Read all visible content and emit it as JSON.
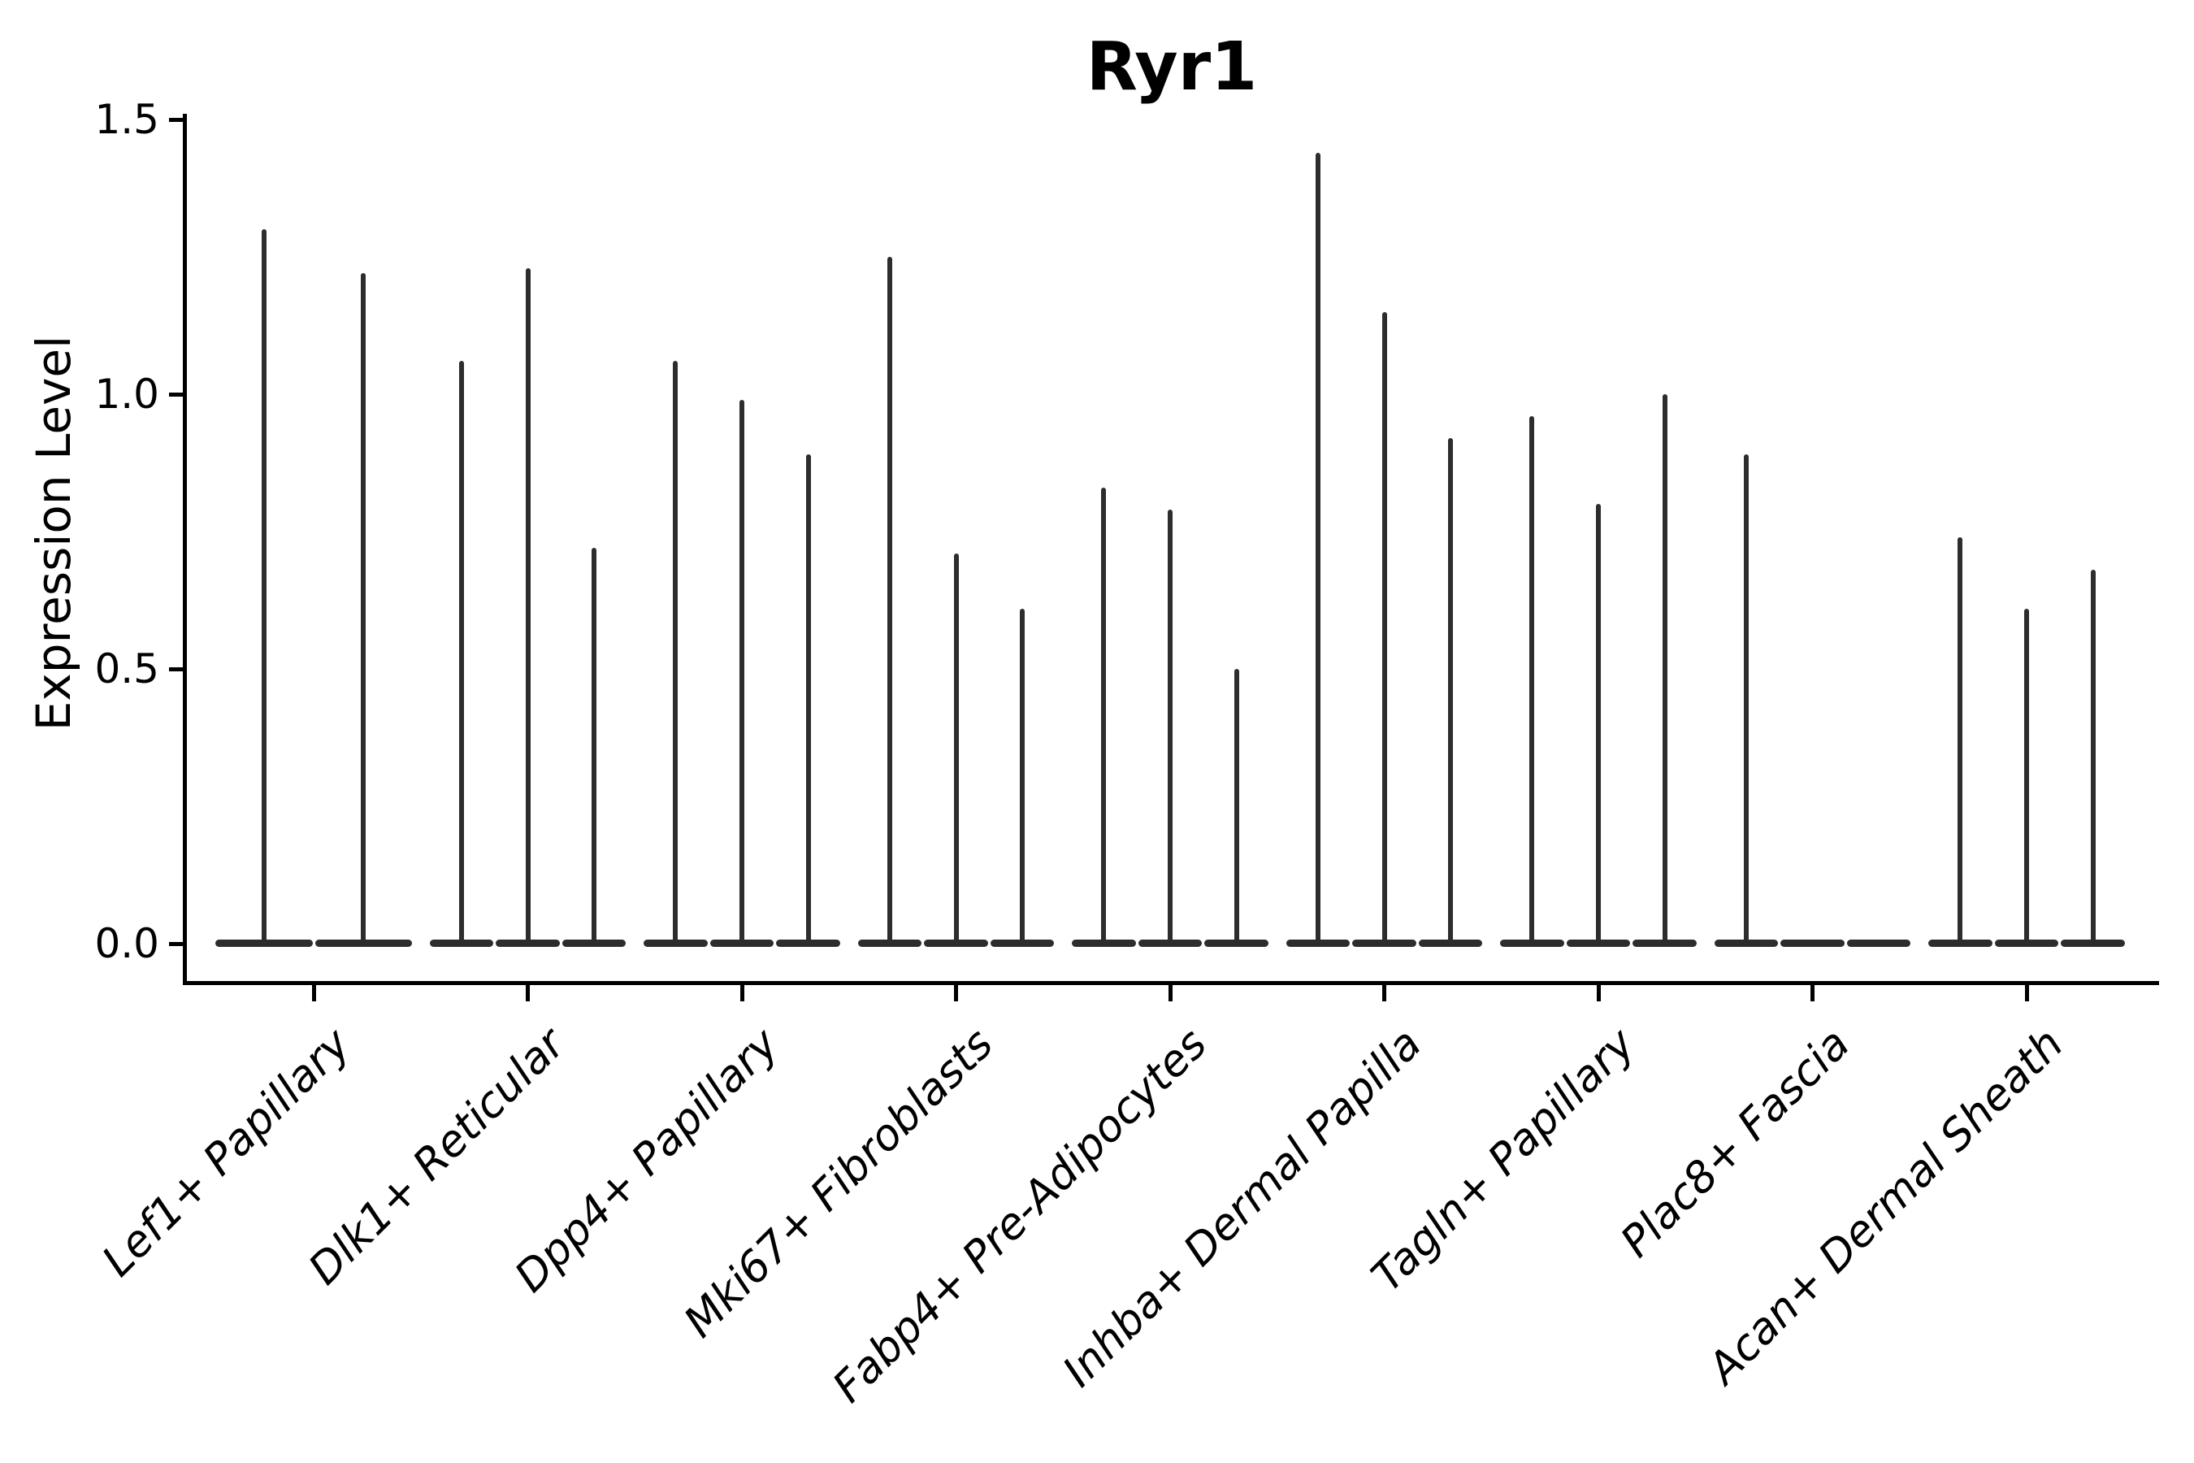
{
  "chart_data": {
    "type": "violin",
    "title": "Ryr1",
    "xlabel": "",
    "ylabel": "Expression Level",
    "ylim": [
      -0.07,
      1.5
    ],
    "yticks": [
      {
        "label": "0.0",
        "value": 0.0
      },
      {
        "label": "0.5",
        "value": 0.5
      },
      {
        "label": "1.0",
        "value": 1.0
      },
      {
        "label": "1.5",
        "value": 1.5
      }
    ],
    "grid": "off",
    "legend": "none",
    "spines": [
      "left",
      "bottom"
    ],
    "x_label_rotation_deg": 45,
    "categories": [
      "Lef1+ Papillary",
      "Dlk1+ Reticular",
      "Dpp4+ Papillary",
      "Mki67+ Fibroblasts",
      "Fabp4+ Pre-Adipocytes",
      "Inhba+ Dermal Papilla",
      "Tagln+ Papillary",
      "Plac8+ Fascia",
      "Acan+ Dermal Sheath"
    ],
    "groups": [
      {
        "category": "Lef1+ Papillary",
        "violin_max_values": [
          1.3,
          1.22
        ]
      },
      {
        "category": "Dlk1+ Reticular",
        "violin_max_values": [
          1.06,
          1.23,
          0.72
        ]
      },
      {
        "category": "Dpp4+ Papillary",
        "violin_max_values": [
          1.06,
          0.99,
          0.89
        ]
      },
      {
        "category": "Mki67+ Fibroblasts",
        "violin_max_values": [
          1.25,
          0.71,
          0.61
        ]
      },
      {
        "category": "Fabp4+ Pre-Adipocytes",
        "violin_max_values": [
          0.83,
          0.79,
          0.5
        ]
      },
      {
        "category": "Inhba+ Dermal Papilla",
        "violin_max_values": [
          1.44,
          1.15,
          0.92
        ]
      },
      {
        "category": "Tagln+ Papillary",
        "violin_max_values": [
          0.96,
          0.8,
          1.0
        ]
      },
      {
        "category": "Plac8+ Fascia",
        "violin_max_values": [
          0.89,
          0.0,
          0.0
        ]
      },
      {
        "category": "Acan+ Dermal Sheath",
        "violin_max_values": [
          0.74,
          0.61,
          0.68
        ]
      }
    ],
    "colors": {
      "violin": "#2d2d2d",
      "axis": "#000000",
      "text": "#000000",
      "background": "#ffffff"
    }
  }
}
